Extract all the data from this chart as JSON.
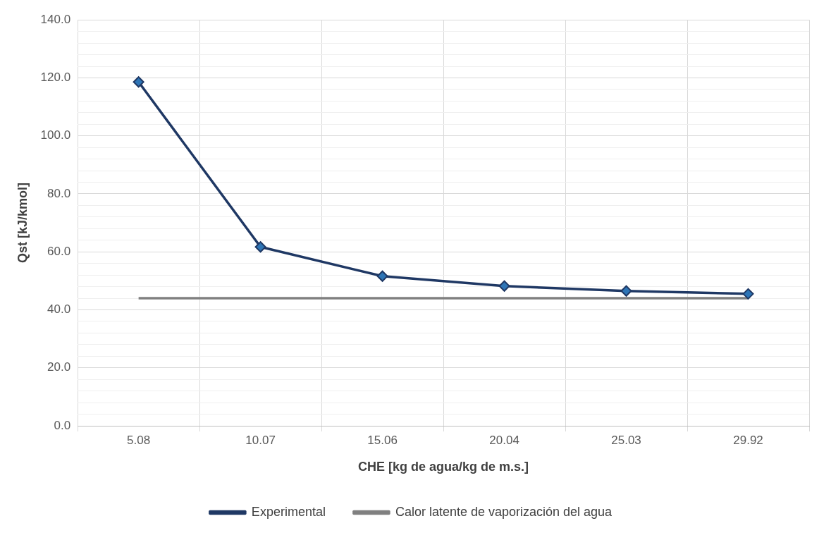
{
  "chart_data": {
    "type": "line",
    "xlabel": "CHE [kg de agua/kg de m.s.]",
    "ylabel": "Qst [kJ/kmol]",
    "categories": [
      "5.08",
      "10.07",
      "15.06",
      "20.04",
      "25.03",
      "29.92"
    ],
    "series": [
      {
        "name": "Experimental",
        "color": "#1f3864",
        "values": [
          118.6,
          61.7,
          51.6,
          48.2,
          46.5,
          45.5
        ],
        "marker": "diamond"
      },
      {
        "name": "Calor latente de vaporización del agua",
        "color": "#808080",
        "values": [
          44.0,
          44.0,
          44.0,
          44.0,
          44.0,
          44.0
        ],
        "marker": "none"
      }
    ],
    "ylim": [
      0,
      140
    ],
    "yticks": [
      {
        "value": 0,
        "label": "0.0"
      },
      {
        "value": 4,
        "label": null
      },
      {
        "value": 8,
        "label": null
      },
      {
        "value": 12,
        "label": null
      },
      {
        "value": 16,
        "label": null
      },
      {
        "value": 20,
        "label": "20.0"
      },
      {
        "value": 24,
        "label": null
      },
      {
        "value": 28,
        "label": null
      },
      {
        "value": 32,
        "label": null
      },
      {
        "value": 36,
        "label": null
      },
      {
        "value": 40,
        "label": "40.0"
      },
      {
        "value": 44,
        "label": null
      },
      {
        "value": 48,
        "label": null
      },
      {
        "value": 52,
        "label": null
      },
      {
        "value": 56,
        "label": null
      },
      {
        "value": 60,
        "label": "60.0"
      },
      {
        "value": 64,
        "label": null
      },
      {
        "value": 68,
        "label": null
      },
      {
        "value": 72,
        "label": null
      },
      {
        "value": 76,
        "label": null
      },
      {
        "value": 80,
        "label": "80.0"
      },
      {
        "value": 84,
        "label": null
      },
      {
        "value": 88,
        "label": null
      },
      {
        "value": 92,
        "label": null
      },
      {
        "value": 96,
        "label": null
      },
      {
        "value": 100,
        "label": "100.0"
      },
      {
        "value": 104,
        "label": null
      },
      {
        "value": 108,
        "label": null
      },
      {
        "value": 112,
        "label": null
      },
      {
        "value": 116,
        "label": null
      },
      {
        "value": 120,
        "label": "120.0"
      },
      {
        "value": 124,
        "label": null
      },
      {
        "value": 128,
        "label": null
      },
      {
        "value": 132,
        "label": null
      },
      {
        "value": 136,
        "label": null
      },
      {
        "value": 140,
        "label": "140.0"
      }
    ],
    "grid": true,
    "legend": "bottom",
    "line_style": "solid"
  }
}
